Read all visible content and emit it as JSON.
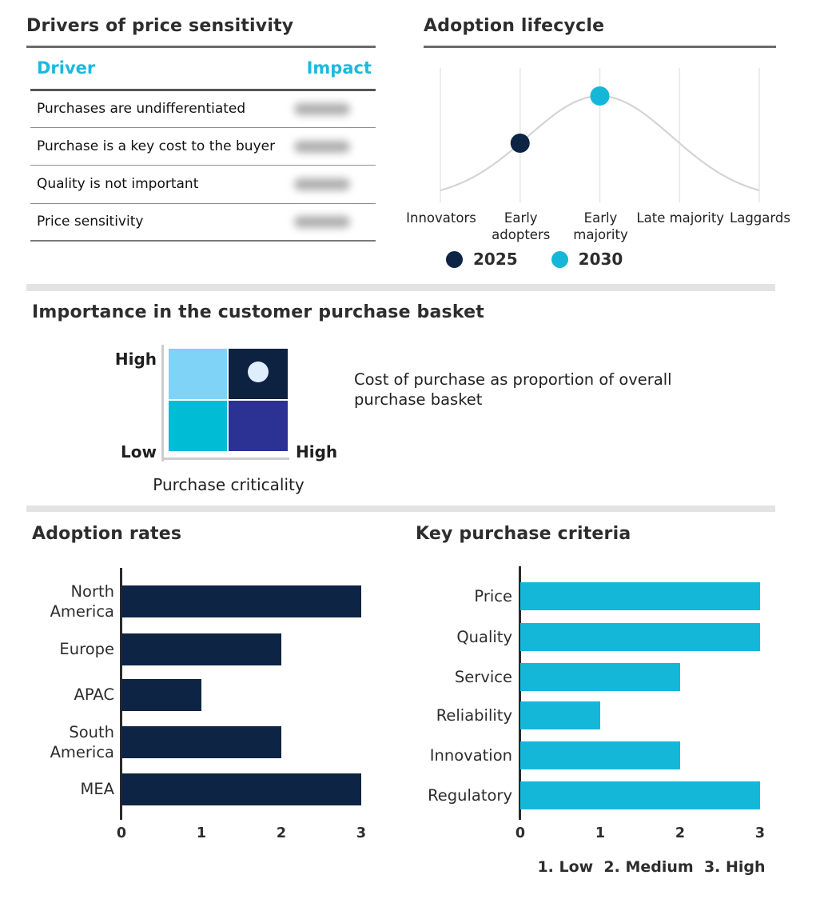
{
  "colors": {
    "navy": "#0e2445",
    "cyan": "#15b7d9",
    "header_cyan": "#1cb9dd",
    "curve_gray": "#d4d4d4",
    "gridline_gray": "#e8e8e8",
    "divider_gray": "#e3e3e3",
    "matrix_light_blue": "#7ed3f7",
    "matrix_dark_navy": "#0d2240",
    "matrix_teal": "#00bcd4",
    "matrix_indigo": "#2c3294",
    "matrix_marker": "#dfeefc"
  },
  "chart_data": [
    {
      "id": "drivers-of-price-sensitivity",
      "type": "table",
      "title": "Drivers of price sensitivity",
      "columns": [
        "Driver",
        "Impact"
      ],
      "rows": [
        [
          "Purchases are undifferentiated",
          "(blurred)"
        ],
        [
          "Purchase is a key cost to the buyer",
          "(blurred)"
        ],
        [
          "Quality is not important",
          "(blurred)"
        ],
        [
          "Price sensitivity",
          "(blurred)"
        ]
      ],
      "impact_values_redacted": true
    },
    {
      "id": "adoption-lifecycle",
      "type": "line",
      "title": "Adoption lifecycle",
      "x": [
        "Innovators",
        "Early adopters",
        "Early majority",
        "Late majority",
        "Laggards"
      ],
      "curve": "gray bell curve rising from Innovators, peaking at Early majority, falling to Laggards",
      "series": [
        {
          "name": "2025",
          "marker_at": "Early adopters",
          "color": "#0e2445"
        },
        {
          "name": "2030",
          "marker_at": "Early majority",
          "color": "#15b7d9"
        }
      ],
      "legend_position": "bottom",
      "grid": "vertical gridlines at each category"
    },
    {
      "id": "importance-in-purchase-basket",
      "type": "heatmap",
      "title": "Importance in the customer purchase basket",
      "xlabel": "Purchase criticality",
      "x_range": [
        "Low",
        "High"
      ],
      "y_range": [
        "Low",
        "High"
      ],
      "cells_top_to_bottom": [
        [
          "#7ed3f7",
          "#0d2240"
        ],
        [
          "#00bcd4",
          "#2c3294"
        ]
      ],
      "marker": {
        "quadrant": "high-high (top-right)",
        "color": "#dfeefc"
      },
      "annotation": "Cost of purchase as proportion of overall purchase basket"
    },
    {
      "id": "adoption-rates",
      "type": "bar",
      "title": "Adoption rates",
      "orientation": "horizontal",
      "categories": [
        "North America",
        "Europe",
        "APAC",
        "South America",
        "MEA"
      ],
      "values": [
        3,
        2,
        1,
        2,
        3
      ],
      "xlim": [
        0,
        3
      ],
      "xticks": [
        "0",
        "1",
        "2",
        "3"
      ],
      "bar_color": "#0e2445"
    },
    {
      "id": "key-purchase-criteria",
      "type": "bar",
      "title": "Key purchase criteria",
      "orientation": "horizontal",
      "categories": [
        "Price",
        "Quality",
        "Service",
        "Reliability",
        "Innovation",
        "Regulatory"
      ],
      "values": [
        3,
        3,
        2,
        1,
        2,
        3
      ],
      "xlim": [
        0,
        3
      ],
      "xticks": [
        "0",
        "1",
        "2",
        "3"
      ],
      "bar_color": "#15b7d9",
      "scale_note": "1. Low  2. Medium  3. High"
    }
  ]
}
